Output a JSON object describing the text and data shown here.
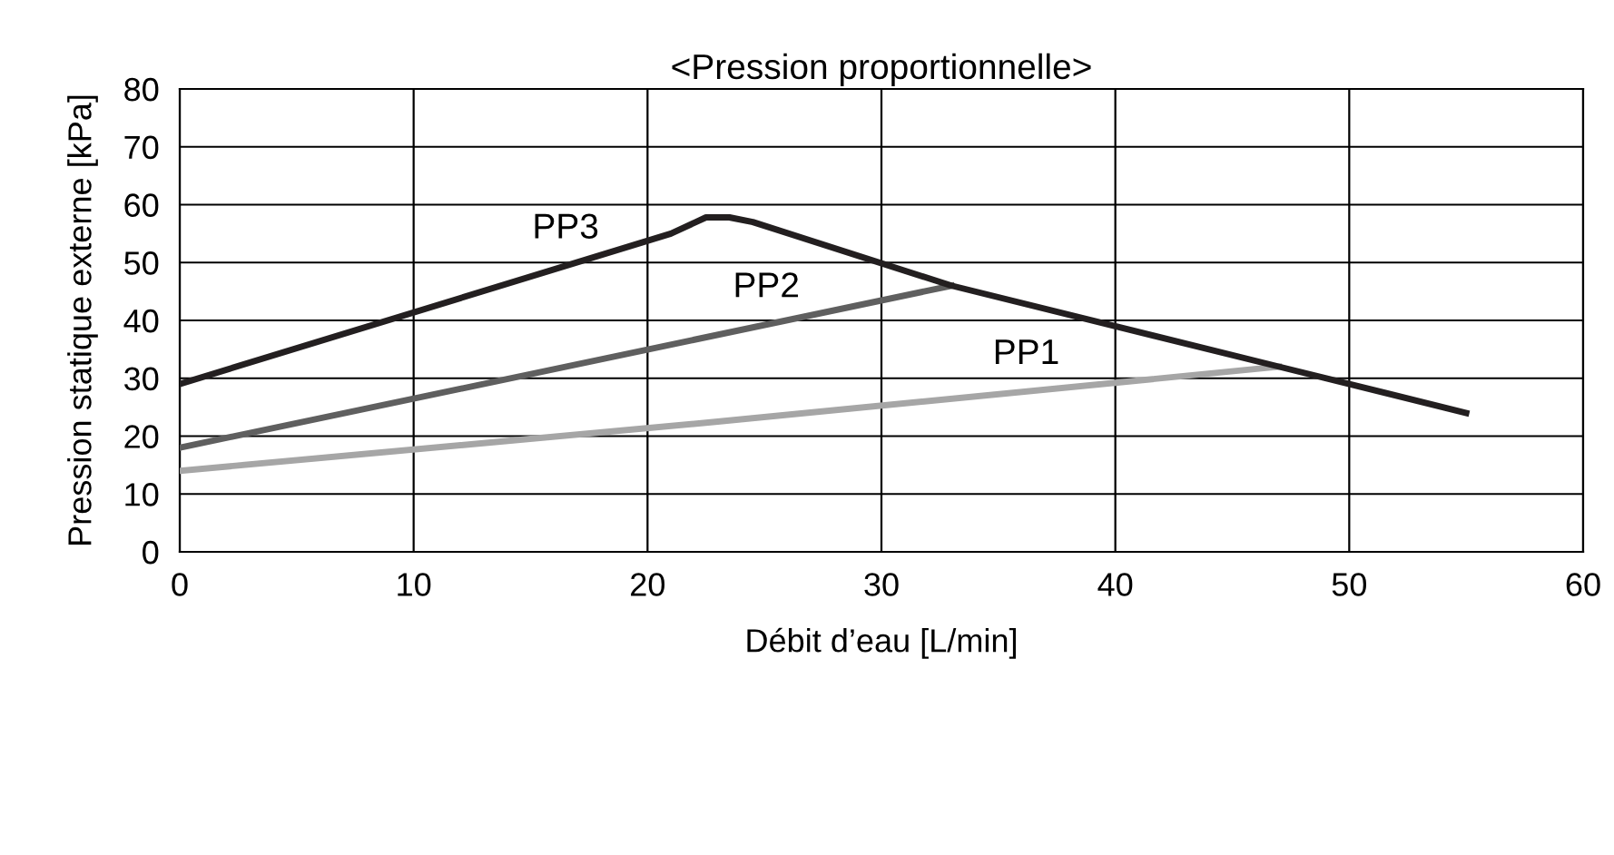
{
  "chart_data": {
    "type": "line",
    "title": "<Pression proportionnelle>",
    "xlabel": "Débit d’eau [L/min]",
    "ylabel": "Pression statique externe [kPa]",
    "xlim": [
      0,
      60
    ],
    "xticks": [
      0,
      10,
      20,
      30,
      40,
      50,
      60
    ],
    "ylim": [
      0,
      80
    ],
    "yticks": [
      0,
      10,
      20,
      30,
      40,
      50,
      60,
      70,
      80
    ],
    "grid": true,
    "legend": false,
    "marker": "none",
    "line_style": "solid",
    "series": [
      {
        "name": "PP1",
        "color": "#a6a6a6",
        "x": [
          0,
          23,
          47
        ],
        "values": [
          14,
          22.5,
          32
        ]
      },
      {
        "name": "PP2",
        "color": "#5f5f5f",
        "x": [
          0,
          33
        ],
        "values": [
          18,
          46
        ]
      },
      {
        "name": "PP3",
        "color": "#231f20",
        "x": [
          0,
          21,
          22.5,
          23.5,
          24.5,
          33,
          47,
          55
        ],
        "values": [
          29,
          55,
          57.8,
          57.8,
          57,
          46,
          32,
          24
        ]
      }
    ]
  }
}
